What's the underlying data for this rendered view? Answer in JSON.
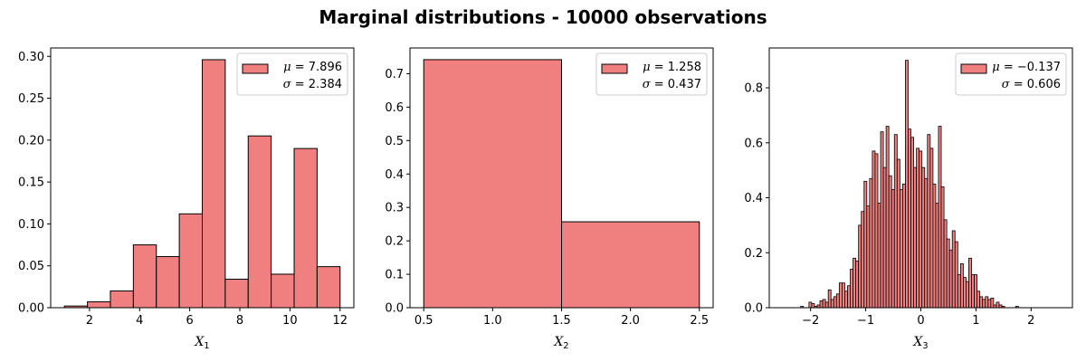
{
  "title": "Marginal distributions - 10000 observations",
  "colors": {
    "bar_fill": "#f08080",
    "bar_edge": "#000000",
    "legend_edge": "#cccccc"
  },
  "chart_data": [
    {
      "type": "bar",
      "xlabel": {
        "var": "X",
        "sub": "1"
      },
      "xlim": [
        0.45,
        12.55
      ],
      "ylim": [
        0,
        0.31
      ],
      "xticks": [
        2,
        4,
        6,
        8,
        10,
        12
      ],
      "xtick_labels": [
        "2",
        "4",
        "6",
        "8",
        "10",
        "12"
      ],
      "yticks": [
        0,
        0.05,
        0.1,
        0.15,
        0.2,
        0.25,
        0.3
      ],
      "ytick_labels": [
        "0.00",
        "0.05",
        "0.10",
        "0.15",
        "0.20",
        "0.25",
        "0.30"
      ],
      "bin_edges": [
        1,
        1.917,
        2.833,
        3.75,
        4.667,
        5.583,
        6.5,
        7.417,
        8.333,
        9.25,
        10.167,
        11.083,
        12
      ],
      "values": [
        0.002,
        0.007,
        0.02,
        0.075,
        0.061,
        0.112,
        0.296,
        0.034,
        0.205,
        0.04,
        0.19,
        0.049
      ],
      "legend": {
        "placement": "top-right",
        "mu": "7.896",
        "sigma": "2.384"
      },
      "grid": false
    },
    {
      "type": "bar",
      "xlabel": {
        "var": "X",
        "sub": "2"
      },
      "xlim": [
        0.4,
        2.6
      ],
      "ylim": [
        0,
        0.777
      ],
      "xticks": [
        0.5,
        1.0,
        1.5,
        2.0,
        2.5
      ],
      "xtick_labels": [
        "0.5",
        "1.0",
        "1.5",
        "2.0",
        "2.5"
      ],
      "yticks": [
        0,
        0.1,
        0.2,
        0.3,
        0.4,
        0.5,
        0.6,
        0.7
      ],
      "ytick_labels": [
        "0.0",
        "0.1",
        "0.2",
        "0.3",
        "0.4",
        "0.5",
        "0.6",
        "0.7"
      ],
      "bin_edges": [
        0.5,
        1.5,
        2.5
      ],
      "values": [
        0.742,
        0.257
      ],
      "legend": {
        "placement": "top-right",
        "mu": "1.258",
        "sigma": "0.437"
      },
      "grid": false
    },
    {
      "type": "bar",
      "xlabel": {
        "var": "X",
        "sub": "3"
      },
      "xlim": [
        -2.75,
        2.75
      ],
      "ylim": [
        0,
        0.945
      ],
      "xticks": [
        -2,
        -1,
        0,
        1,
        2
      ],
      "xtick_labels": [
        "−2",
        "−1",
        "0",
        "1",
        "2"
      ],
      "yticks": [
        0,
        0.2,
        0.4,
        0.6,
        0.8
      ],
      "ytick_labels": [
        "0.0",
        "0.2",
        "0.4",
        "0.6",
        "0.8"
      ],
      "bin_edges": [
        -2.48,
        -2.43,
        -2.38,
        -2.33,
        -2.28,
        -2.23,
        -2.18,
        -2.13,
        -2.08,
        -2.03,
        -1.98,
        -1.93,
        -1.88,
        -1.83,
        -1.78,
        -1.73,
        -1.68,
        -1.63,
        -1.58,
        -1.53,
        -1.48,
        -1.43,
        -1.38,
        -1.33,
        -1.28,
        -1.23,
        -1.18,
        -1.13,
        -1.08,
        -1.03,
        -0.98,
        -0.93,
        -0.88,
        -0.83,
        -0.78,
        -0.73,
        -0.68,
        -0.63,
        -0.58,
        -0.53,
        -0.48,
        -0.43,
        -0.38,
        -0.33,
        -0.28,
        -0.23,
        -0.18,
        -0.13,
        -0.08,
        -0.03,
        0.02,
        0.07,
        0.12,
        0.17,
        0.22,
        0.27,
        0.32,
        0.37,
        0.42,
        0.47,
        0.52,
        0.57,
        0.62,
        0.67,
        0.72,
        0.77,
        0.82,
        0.87,
        0.92,
        0.97,
        1.02,
        1.07,
        1.12,
        1.17,
        1.22,
        1.27,
        1.32,
        1.37,
        1.42,
        1.47,
        1.52,
        1.57,
        1.62,
        1.67,
        1.72,
        1.77,
        1.82,
        1.87,
        1.92,
        1.97,
        2.02,
        2.07,
        2.12,
        2.17
      ],
      "values": [
        0.0,
        0.0,
        0.0,
        0.0,
        0.0,
        0.0,
        0.005,
        0.0,
        0.0,
        0.02,
        0.015,
        0.005,
        0.01,
        0.025,
        0.03,
        0.02,
        0.065,
        0.03,
        0.04,
        0.05,
        0.09,
        0.09,
        0.06,
        0.08,
        0.14,
        0.18,
        0.17,
        0.3,
        0.35,
        0.46,
        0.37,
        0.47,
        0.57,
        0.56,
        0.38,
        0.64,
        0.51,
        0.66,
        0.48,
        0.43,
        0.63,
        0.54,
        0.43,
        0.45,
        0.9,
        0.65,
        0.62,
        0.51,
        0.58,
        0.57,
        0.51,
        0.47,
        0.63,
        0.58,
        0.45,
        0.38,
        0.66,
        0.44,
        0.32,
        0.25,
        0.21,
        0.28,
        0.24,
        0.12,
        0.16,
        0.11,
        0.095,
        0.18,
        0.12,
        0.12,
        0.06,
        0.04,
        0.03,
        0.04,
        0.03,
        0.035,
        0.01,
        0.02,
        0.01,
        0.005,
        0.0,
        0.0,
        0.0,
        0.0,
        0.005,
        0.0,
        0.0,
        0.0,
        0.0,
        0.0,
        0.0,
        0.0,
        0.0
      ],
      "legend": {
        "placement": "top-right",
        "mu": "−0.137",
        "sigma": "0.606"
      },
      "grid": false
    }
  ]
}
